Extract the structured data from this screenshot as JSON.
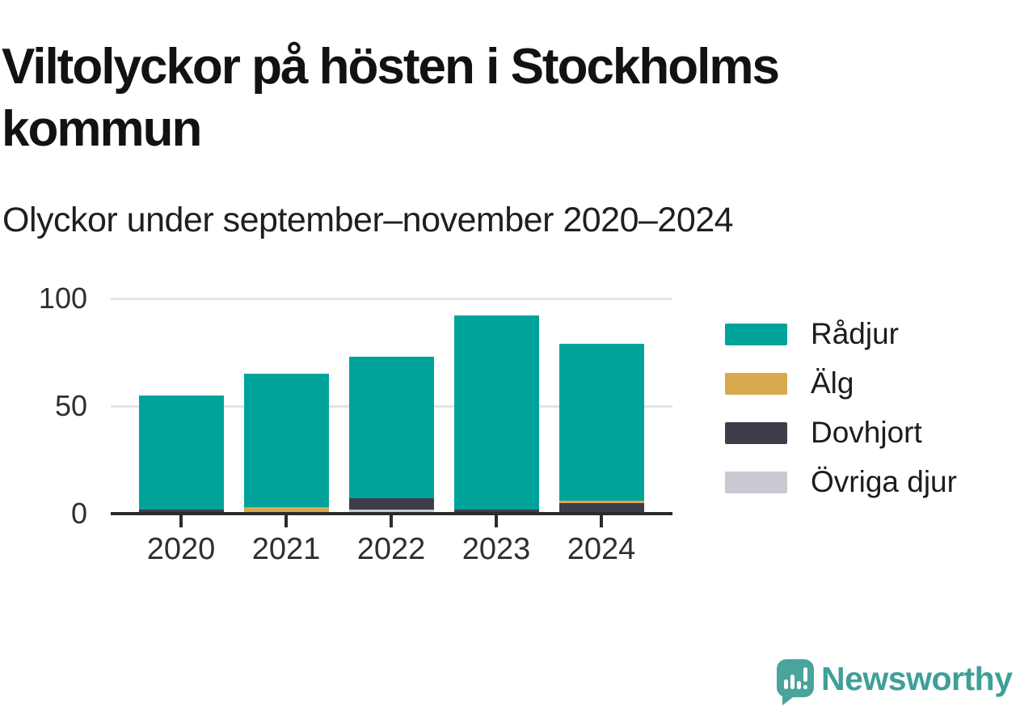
{
  "header": {
    "title": "Viltolyckor på hösten i Stockholms kommun",
    "subtitle": "Olyckor under september–november 2020–2024"
  },
  "chart_data": {
    "type": "bar",
    "stacked": true,
    "title": "Viltolyckor på hösten i Stockholms kommun",
    "subtitle": "Olyckor under september–november 2020–2024",
    "categories": [
      "2020",
      "2021",
      "2022",
      "2023",
      "2024"
    ],
    "series": [
      {
        "name": "Rådjur",
        "color": "#00a39a",
        "values": [
          53,
          62,
          66,
          90,
          73
        ]
      },
      {
        "name": "Älg",
        "color": "#d8a84e",
        "values": [
          0,
          3,
          0,
          0,
          1
        ]
      },
      {
        "name": "Dovhjort",
        "color": "#3e3e4a",
        "values": [
          2,
          0,
          5,
          2,
          5
        ]
      },
      {
        "name": "Övriga djur",
        "color": "#c9c9d2",
        "values": [
          0,
          0,
          2,
          0,
          0
        ]
      }
    ],
    "stack_order_bottom_to_top": [
      "Övriga djur",
      "Dovhjort",
      "Älg",
      "Rådjur"
    ],
    "stacked_totals": [
      55,
      65,
      73,
      92,
      79
    ],
    "xlabel": "",
    "ylabel": "",
    "ylim": [
      0,
      100
    ],
    "y_ticks": [
      0,
      50,
      100
    ],
    "grid": "horizontal",
    "legend_position": "right"
  },
  "legend": {
    "items": [
      {
        "label": "Rådjur",
        "color": "#00a39a"
      },
      {
        "label": "Älg",
        "color": "#d8a84e"
      },
      {
        "label": "Dovhjort",
        "color": "#3e3e4a"
      },
      {
        "label": "Övriga djur",
        "color": "#c9c9d2"
      }
    ]
  },
  "branding": {
    "logo_text": "Newsworthy",
    "logo_text_color": "#3f9f99",
    "logo_mark_color": "#4ba49c"
  },
  "colors": {
    "axis": "#2b2b2b",
    "grid": "#e4e4e6",
    "axis_text": "#2f2f2f",
    "title_text": "#121212"
  }
}
